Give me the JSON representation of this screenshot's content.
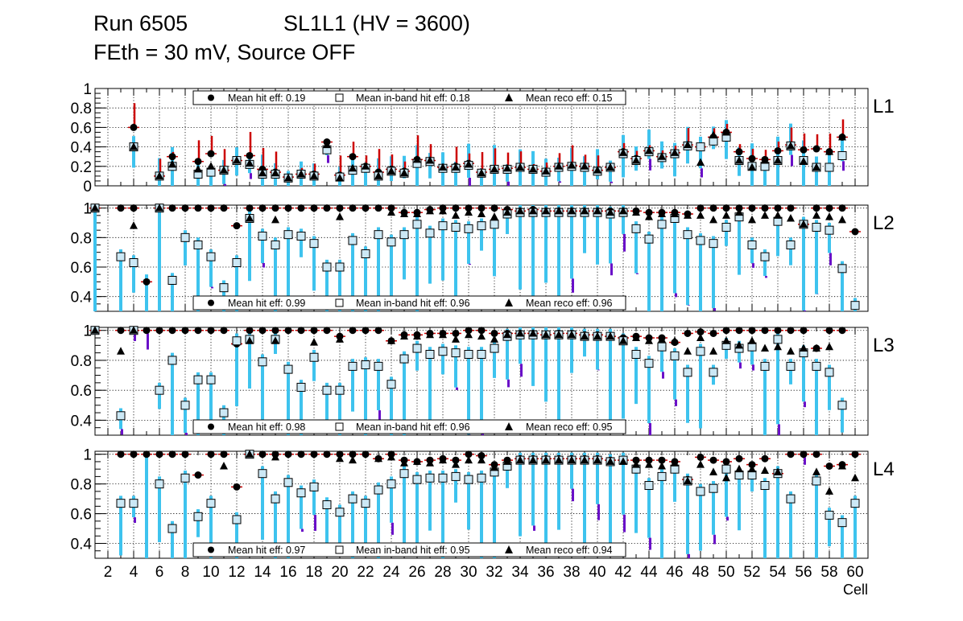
{
  "header": {
    "run": "Run 6505",
    "chamber": "SL1L1 (HV = 3600)",
    "conditions": "FEth = 30 mV, Source OFF"
  },
  "colors": {
    "hit": "#000000",
    "inband_fill": "#cce8f5",
    "reco": "#000000",
    "err_cyan": "#3ec3ee",
    "err_red": "#cc0000",
    "err_purple": "#6a10c8",
    "grid": "#000000"
  },
  "chart_data": {
    "type": "scatter",
    "xlabel": "Cell",
    "x_range": [
      1,
      61
    ],
    "x_ticks": [
      2,
      4,
      6,
      8,
      10,
      12,
      14,
      16,
      18,
      20,
      22,
      24,
      26,
      28,
      30,
      32,
      34,
      36,
      38,
      40,
      42,
      44,
      46,
      48,
      50,
      52,
      54,
      56,
      58,
      60
    ],
    "legend_names": {
      "hit": "Mean hit  eff: ",
      "inband": "Mean in-band hit eff: ",
      "reco": "Mean reco eff: "
    },
    "panels": [
      {
        "layer": "L1",
        "ylim": [
          0,
          1
        ],
        "y_ticks": [
          0,
          0.2,
          0.4,
          0.6,
          0.8,
          1
        ],
        "y_tick_labels": [
          "0",
          "0.2",
          "0.4",
          "0.6",
          "0.8",
          "1"
        ],
        "legend_position": "top",
        "mean_hit": "0.19",
        "mean_inband": "0.18",
        "mean_reco": "0.15",
        "cells": [
          4,
          6,
          7,
          9,
          10,
          11,
          12,
          13,
          14,
          15,
          16,
          17,
          18,
          19,
          20,
          21,
          22,
          23,
          24,
          25,
          26,
          27,
          28,
          29,
          30,
          31,
          32,
          33,
          34,
          35,
          36,
          37,
          38,
          39,
          40,
          41,
          42,
          43,
          44,
          45,
          46,
          47,
          48,
          49,
          50,
          51,
          52,
          53,
          54,
          55,
          56,
          57,
          58,
          59
        ],
        "hit": [
          0.6,
          0.1,
          0.3,
          0.25,
          0.33,
          0.16,
          0.26,
          0.31,
          0.17,
          0.14,
          0.09,
          0.12,
          0.12,
          0.45,
          0.11,
          0.3,
          0.2,
          0.14,
          0.17,
          0.15,
          0.27,
          0.26,
          0.19,
          0.2,
          0.23,
          0.14,
          0.17,
          0.18,
          0.19,
          0.17,
          0.15,
          0.2,
          0.21,
          0.2,
          0.16,
          0.19,
          0.35,
          0.28,
          0.36,
          0.3,
          0.34,
          0.42,
          0.4,
          0.5,
          0.55,
          0.35,
          0.28,
          0.27,
          0.36,
          0.42,
          0.37,
          0.38,
          0.35,
          0.5
        ],
        "inband": [
          0.4,
          0.1,
          0.2,
          0.12,
          0.14,
          0.16,
          0.26,
          0.22,
          0.12,
          0.12,
          0.08,
          0.12,
          0.1,
          0.37,
          0.09,
          0.16,
          0.18,
          0.1,
          0.15,
          0.13,
          0.23,
          0.25,
          0.18,
          0.18,
          0.21,
          0.13,
          0.17,
          0.17,
          0.19,
          0.17,
          0.14,
          0.19,
          0.2,
          0.19,
          0.15,
          0.19,
          0.33,
          0.26,
          0.35,
          0.29,
          0.33,
          0.41,
          0.4,
          0.46,
          0.5,
          0.26,
          0.2,
          0.2,
          0.26,
          0.41,
          0.26,
          0.19,
          0.19,
          0.31
        ],
        "reco": [
          0.4,
          0.1,
          0.22,
          0.17,
          0.2,
          0.16,
          0.26,
          0.23,
          0.13,
          0.13,
          0.08,
          0.12,
          0.1,
          0.42,
          0.08,
          0.18,
          0.2,
          0.1,
          0.15,
          0.13,
          0.27,
          0.26,
          0.19,
          0.19,
          0.22,
          0.13,
          0.17,
          0.18,
          0.19,
          0.17,
          0.15,
          0.2,
          0.21,
          0.2,
          0.16,
          0.19,
          0.34,
          0.26,
          0.36,
          0.3,
          0.34,
          0.42,
          0.24,
          0.52,
          0.55,
          0.26,
          0.19,
          0.26,
          0.26,
          0.41,
          0.25,
          0.19,
          0.35,
          0.5
        ]
      },
      {
        "layer": "L2",
        "ylim": [
          0.3,
          1.02
        ],
        "y_ticks": [
          0.4,
          0.6,
          0.8,
          1
        ],
        "y_tick_labels": [
          "0.4",
          "0.6",
          "0.8",
          "1"
        ],
        "legend_position": "bottom",
        "mean_hit": "0.99",
        "mean_inband": "0.96",
        "mean_reco": "0.96",
        "cells": [
          1,
          3,
          4,
          5,
          6,
          7,
          8,
          9,
          10,
          11,
          12,
          13,
          14,
          15,
          16,
          17,
          18,
          19,
          20,
          21,
          22,
          23,
          24,
          25,
          26,
          27,
          28,
          29,
          30,
          31,
          32,
          33,
          34,
          35,
          36,
          37,
          38,
          39,
          40,
          41,
          42,
          43,
          44,
          45,
          46,
          47,
          48,
          49,
          50,
          51,
          52,
          53,
          54,
          55,
          56,
          57,
          58,
          59,
          60
        ],
        "hit": [
          1.0,
          1.0,
          1.0,
          0.5,
          1.0,
          1.0,
          1.0,
          1.0,
          1.0,
          1.0,
          0.88,
          1.0,
          1.0,
          1.0,
          1.0,
          1.0,
          1.0,
          1.0,
          1.0,
          1.0,
          1.0,
          1.0,
          1.0,
          0.97,
          0.97,
          0.99,
          1.0,
          1.0,
          1.0,
          1.0,
          1.0,
          0.99,
          0.98,
          0.99,
          0.98,
          0.98,
          0.98,
          0.98,
          0.98,
          0.98,
          0.98,
          0.98,
          0.97,
          0.97,
          0.97,
          0.96,
          1.0,
          1.0,
          1.0,
          1.0,
          1.0,
          1.0,
          1.0,
          1.0,
          0.89,
          1.0,
          1.0,
          1.0,
          0.84
        ],
        "inband": [
          1.0,
          0.67,
          0.63,
          null,
          1.0,
          0.51,
          0.8,
          0.75,
          0.67,
          0.46,
          0.63,
          0.93,
          0.81,
          0.75,
          0.82,
          0.81,
          0.76,
          0.6,
          0.6,
          0.78,
          0.69,
          0.82,
          0.77,
          0.82,
          0.89,
          0.83,
          0.88,
          0.87,
          0.86,
          0.88,
          0.89,
          0.96,
          0.97,
          0.97,
          0.97,
          0.97,
          0.97,
          0.97,
          0.97,
          0.96,
          0.97,
          0.86,
          0.79,
          0.89,
          0.93,
          0.82,
          0.78,
          0.76,
          0.87,
          0.94,
          0.75,
          0.67,
          0.91,
          0.75,
          0.89,
          0.87,
          0.85,
          0.59,
          0.34
        ],
        "reco": [
          1.0,
          null,
          0.88,
          null,
          1.0,
          null,
          null,
          null,
          null,
          null,
          null,
          0.93,
          null,
          0.92,
          null,
          null,
          null,
          null,
          0.94,
          null,
          null,
          null,
          0.97,
          0.96,
          0.96,
          0.98,
          0.98,
          0.95,
          0.97,
          0.96,
          0.94,
          0.97,
          0.98,
          0.98,
          0.98,
          0.98,
          0.98,
          0.98,
          0.98,
          0.97,
          0.98,
          0.97,
          0.94,
          0.96,
          0.96,
          0.95,
          0.95,
          0.92,
          0.95,
          0.97,
          0.92,
          0.95,
          0.95,
          0.93,
          0.89,
          0.95,
          0.94,
          0.92,
          null
        ]
      },
      {
        "layer": "L3",
        "ylim": [
          0.3,
          1.02
        ],
        "y_ticks": [
          0.4,
          0.6,
          0.8,
          1
        ],
        "y_tick_labels": [
          "0.4",
          "0.6",
          "0.8",
          "1"
        ],
        "legend_position": "bottom",
        "mean_hit": "0.98",
        "mean_inband": "0.96",
        "mean_reco": "0.95",
        "cells": [
          1,
          3,
          4,
          5,
          6,
          7,
          8,
          9,
          10,
          11,
          12,
          13,
          14,
          15,
          16,
          17,
          18,
          19,
          20,
          21,
          22,
          23,
          24,
          25,
          26,
          27,
          28,
          29,
          30,
          31,
          32,
          33,
          34,
          35,
          36,
          37,
          38,
          39,
          40,
          41,
          42,
          43,
          44,
          45,
          46,
          47,
          48,
          49,
          50,
          51,
          52,
          53,
          54,
          55,
          56,
          57,
          58,
          59
        ],
        "hit": [
          1.0,
          1.0,
          1.0,
          1.0,
          1.0,
          1.0,
          1.0,
          1.0,
          1.0,
          1.0,
          0.91,
          1.0,
          1.0,
          1.0,
          1.0,
          1.0,
          1.0,
          1.0,
          0.96,
          1.0,
          1.0,
          1.0,
          0.93,
          0.97,
          0.97,
          0.98,
          0.98,
          0.98,
          1.0,
          1.0,
          0.98,
          0.98,
          0.98,
          0.98,
          0.97,
          0.98,
          0.98,
          0.97,
          0.97,
          0.96,
          0.95,
          0.96,
          0.95,
          0.95,
          0.92,
          0.98,
          0.99,
          0.98,
          1.0,
          1.0,
          1.0,
          1.0,
          1.0,
          1.0,
          1.0,
          0.88,
          1.0,
          1.0
        ],
        "inband": [
          1.0,
          0.43,
          1.0,
          null,
          0.6,
          0.8,
          0.5,
          0.67,
          0.67,
          0.45,
          0.93,
          0.94,
          0.79,
          0.94,
          0.74,
          0.62,
          0.82,
          0.6,
          0.6,
          0.76,
          0.77,
          0.76,
          0.64,
          0.81,
          0.88,
          0.84,
          0.86,
          0.85,
          0.84,
          0.84,
          0.88,
          0.96,
          0.97,
          0.97,
          0.97,
          0.97,
          0.97,
          0.96,
          0.96,
          0.96,
          0.93,
          0.84,
          0.78,
          0.89,
          0.83,
          0.72,
          0.86,
          0.72,
          0.9,
          0.88,
          0.89,
          0.76,
          0.94,
          0.76,
          0.85,
          0.76,
          0.72,
          0.5
        ],
        "reco": [
          1.0,
          0.86,
          1.0,
          null,
          null,
          null,
          null,
          null,
          null,
          null,
          null,
          0.93,
          null,
          0.93,
          null,
          null,
          0.92,
          null,
          0.94,
          null,
          null,
          null,
          0.93,
          0.96,
          0.96,
          0.97,
          0.97,
          0.94,
          0.97,
          0.96,
          0.94,
          0.97,
          0.98,
          0.98,
          0.97,
          0.97,
          0.97,
          0.96,
          0.96,
          0.96,
          0.93,
          0.95,
          0.93,
          0.94,
          0.93,
          0.86,
          0.95,
          0.86,
          0.93,
          0.9,
          0.93,
          0.88,
          0.89,
          0.86,
          0.88,
          0.88,
          0.89,
          null
        ]
      },
      {
        "layer": "L4",
        "ylim": [
          0.3,
          1.02
        ],
        "y_ticks": [
          0.4,
          0.6,
          0.8,
          1
        ],
        "y_tick_labels": [
          "0.4",
          "0.6",
          "0.8",
          "1"
        ],
        "legend_position": "bottom",
        "mean_hit": "0.97",
        "mean_inband": "0.95",
        "mean_reco": "0.94",
        "cells": [
          3,
          4,
          5,
          6,
          7,
          8,
          9,
          10,
          11,
          12,
          13,
          14,
          15,
          16,
          17,
          18,
          19,
          20,
          21,
          22,
          23,
          24,
          25,
          26,
          27,
          28,
          29,
          30,
          31,
          32,
          33,
          34,
          35,
          36,
          37,
          38,
          39,
          40,
          41,
          42,
          43,
          44,
          45,
          46,
          47,
          48,
          49,
          50,
          51,
          52,
          53,
          54,
          55,
          56,
          57,
          58,
          59,
          60
        ],
        "hit": [
          1.0,
          1.0,
          1.0,
          1.0,
          1.0,
          1.0,
          0.86,
          1.0,
          1.0,
          0.78,
          1.0,
          1.0,
          1.0,
          1.0,
          1.0,
          1.0,
          1.0,
          1.0,
          1.0,
          1.0,
          0.97,
          1.0,
          0.96,
          0.95,
          0.96,
          0.97,
          0.96,
          1.0,
          0.99,
          0.93,
          0.96,
          0.97,
          0.97,
          0.97,
          0.97,
          0.97,
          0.97,
          0.97,
          0.96,
          0.96,
          0.96,
          0.96,
          0.96,
          0.95,
          0.83,
          0.98,
          0.96,
          0.95,
          0.97,
          0.93,
          0.97,
          0.87,
          1.0,
          1.0,
          1.0,
          0.92,
          0.93,
          1.0
        ],
        "inband": [
          0.67,
          0.67,
          null,
          0.8,
          0.5,
          0.84,
          0.58,
          0.67,
          null,
          0.56,
          1.0,
          0.87,
          0.7,
          0.81,
          0.74,
          0.78,
          0.66,
          0.61,
          0.7,
          0.67,
          0.76,
          0.8,
          0.87,
          0.83,
          0.84,
          0.84,
          0.85,
          0.83,
          0.84,
          0.88,
          0.92,
          0.96,
          0.96,
          0.96,
          0.96,
          0.96,
          0.96,
          0.96,
          0.95,
          0.96,
          0.9,
          0.79,
          0.85,
          0.9,
          0.82,
          0.75,
          0.77,
          0.9,
          0.86,
          0.86,
          0.79,
          0.87,
          0.7,
          null,
          0.82,
          0.59,
          0.54,
          0.67
        ],
        "reco": [
          null,
          null,
          null,
          null,
          null,
          null,
          null,
          null,
          0.92,
          null,
          1.0,
          null,
          0.98,
          null,
          null,
          null,
          null,
          0.97,
          0.96,
          null,
          0.97,
          0.98,
          0.94,
          0.95,
          0.94,
          0.96,
          0.93,
          0.96,
          0.96,
          0.91,
          0.95,
          0.96,
          0.96,
          0.96,
          0.96,
          0.96,
          0.96,
          0.96,
          0.95,
          0.95,
          0.93,
          0.93,
          0.92,
          0.94,
          0.82,
          0.93,
          0.88,
          0.84,
          0.9,
          0.9,
          0.89,
          0.88,
          null,
          null,
          0.88,
          0.75,
          0.92,
          0.84
        ]
      }
    ]
  }
}
